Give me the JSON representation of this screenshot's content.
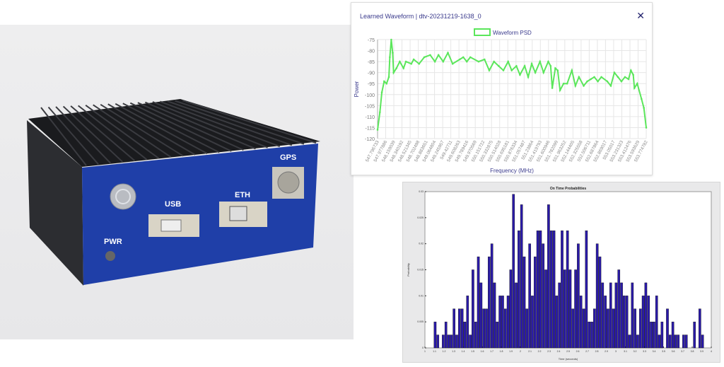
{
  "photo": {
    "labels": {
      "gps": "GPS",
      "usb": "USB",
      "eth": "ETH",
      "pwr": "PWR"
    },
    "panel_color": "#1f3fa8"
  },
  "psd_window": {
    "title": "Learned Waveform | dtv-20231219-1638_0",
    "close_icon": "close-x-icon"
  },
  "chart_data": [
    {
      "type": "line",
      "title": "",
      "xlabel": "Frequency (MHz)",
      "ylabel": "Power",
      "legend": [
        "Waveform PSD"
      ],
      "legend_position": "top",
      "grid": true,
      "color": "#5be65b",
      "ylim": [
        -120,
        -75
      ],
      "yticks": [
        -75,
        -80,
        -85,
        -90,
        -95,
        -100,
        -105,
        -110,
        -115,
        -120
      ],
      "xticks": [
        "547.796733",
        "547.977886",
        "548.159039",
        "548.340192",
        "548.521345",
        "548.702498",
        "548.883651",
        "549.064804",
        "549.245957",
        "549.42711",
        "549.608263",
        "549.789416",
        "549.970569",
        "550.151722",
        "550.332875",
        "550.514028",
        "550.695181",
        "550.876334",
        "551.057487",
        "551.23864",
        "551.419793",
        "551.600946",
        "551.782099",
        "551.963252",
        "552.144405",
        "552.325558",
        "552.506711",
        "552.687864",
        "552.869017",
        "553.05017",
        "553.231323",
        "553.412476",
        "553.593629",
        "553.774782"
      ],
      "xlim": [
        547.796733,
        553.774782
      ],
      "series": [
        {
          "name": "Waveform PSD",
          "points": [
            [
              547.797,
              -116
            ],
            [
              547.849,
              -108
            ],
            [
              547.892,
              -99
            ],
            [
              547.944,
              -94
            ],
            [
              547.997,
              -95
            ],
            [
              548.049,
              -92
            ],
            [
              548.07,
              -83
            ],
            [
              548.102,
              -75
            ],
            [
              548.133,
              -81
            ],
            [
              548.154,
              -90
            ],
            [
              548.217,
              -88
            ],
            [
              548.291,
              -85
            ],
            [
              548.375,
              -88
            ],
            [
              548.427,
              -85
            ],
            [
              548.548,
              -86
            ],
            [
              548.601,
              -84
            ],
            [
              548.721,
              -86
            ],
            [
              548.837,
              -83
            ],
            [
              548.968,
              -82
            ],
            [
              549.073,
              -85
            ],
            [
              549.152,
              -82
            ],
            [
              549.257,
              -85
            ],
            [
              549.362,
              -81
            ],
            [
              549.467,
              -86
            ],
            [
              549.625,
              -84
            ],
            [
              549.704,
              -83
            ],
            [
              549.783,
              -85
            ],
            [
              549.861,
              -83
            ],
            [
              550.045,
              -85
            ],
            [
              550.177,
              -84
            ],
            [
              550.282,
              -89
            ],
            [
              550.387,
              -85
            ],
            [
              550.492,
              -87
            ],
            [
              550.597,
              -89
            ],
            [
              550.702,
              -85
            ],
            [
              550.781,
              -89
            ],
            [
              550.886,
              -87
            ],
            [
              550.965,
              -91
            ],
            [
              551.07,
              -87
            ],
            [
              551.148,
              -92
            ],
            [
              551.227,
              -86
            ],
            [
              551.306,
              -90
            ],
            [
              551.411,
              -85
            ],
            [
              551.49,
              -90
            ],
            [
              551.595,
              -85
            ],
            [
              551.648,
              -87
            ],
            [
              551.684,
              -97
            ],
            [
              551.752,
              -88
            ],
            [
              551.805,
              -89
            ],
            [
              551.857,
              -98
            ],
            [
              551.936,
              -95
            ],
            [
              552.015,
              -95
            ],
            [
              552.12,
              -89
            ],
            [
              552.199,
              -96
            ],
            [
              552.278,
              -92
            ],
            [
              552.383,
              -96
            ],
            [
              552.462,
              -94
            ],
            [
              552.54,
              -93
            ],
            [
              552.619,
              -92
            ],
            [
              552.698,
              -94
            ],
            [
              552.777,
              -92
            ],
            [
              552.908,
              -94
            ],
            [
              552.987,
              -96
            ],
            [
              553.066,
              -90
            ],
            [
              553.145,
              -92
            ],
            [
              553.223,
              -94
            ],
            [
              553.302,
              -92
            ],
            [
              553.381,
              -93
            ],
            [
              553.434,
              -89
            ],
            [
              553.486,
              -91
            ],
            [
              553.512,
              -97
            ],
            [
              553.575,
              -95
            ],
            [
              553.67,
              -102
            ],
            [
              553.722,
              -106
            ],
            [
              553.775,
              -115
            ]
          ]
        }
      ]
    },
    {
      "type": "bar",
      "title": "On Time Probabilities",
      "xlabel": "Time (seconds)",
      "ylabel": "Probability",
      "color": "#2a1aa8",
      "xlim": [
        1,
        4
      ],
      "ylim": [
        0,
        0.03
      ],
      "xticks": [
        "1",
        "1.1",
        "1.2",
        "1.3",
        "1.4",
        "1.5",
        "1.6",
        "1.7",
        "1.8",
        "1.9",
        "2",
        "2.1",
        "2.2",
        "2.3",
        "2.4",
        "2.5",
        "2.6",
        "2.7",
        "2.8",
        "2.9",
        "3",
        "3.1",
        "3.2",
        "3.3",
        "3.4",
        "3.5",
        "3.6",
        "3.7",
        "3.8",
        "3.9",
        "4"
      ],
      "yticks": [
        "0",
        "0.005",
        "0.01",
        "0.015",
        "0.02",
        "0.025",
        "0.03"
      ],
      "bin_start": 1.109,
      "bin_width": 0.0283,
      "values": [
        0.005,
        0.0025,
        0,
        0.0025,
        0.005,
        0.0025,
        0.0025,
        0.0075,
        0.0025,
        0.0075,
        0.0075,
        0.005,
        0.01,
        0.0025,
        0.015,
        0.005,
        0.0175,
        0.0125,
        0.0075,
        0.0075,
        0.0175,
        0.02,
        0.0125,
        0.005,
        0.01,
        0.01,
        0.0075,
        0.01,
        0.015,
        0.0295,
        0.0125,
        0.0225,
        0.0275,
        0.0175,
        0.0075,
        0.02,
        0.01,
        0.0175,
        0.0225,
        0.0225,
        0.02,
        0.015,
        0.0275,
        0.0225,
        0.0225,
        0.01,
        0.0125,
        0.0225,
        0.015,
        0.0225,
        0.015,
        0.0075,
        0.015,
        0.02,
        0.01,
        0.0075,
        0.0225,
        0.005,
        0.005,
        0.0075,
        0.02,
        0.0175,
        0.0125,
        0.01,
        0.0075,
        0.0125,
        0.0075,
        0.0125,
        0.015,
        0.0125,
        0.01,
        0.01,
        0.0025,
        0.0125,
        0.0075,
        0.0025,
        0.0075,
        0.01,
        0.0125,
        0.01,
        0.005,
        0.005,
        0.01,
        0.0025,
        0.005,
        0,
        0.0075,
        0.0025,
        0.005,
        0.0025,
        0.0025,
        0,
        0.0025,
        0.0025,
        0,
        0,
        0.005,
        0,
        0.0075,
        0.0025
      ]
    }
  ]
}
